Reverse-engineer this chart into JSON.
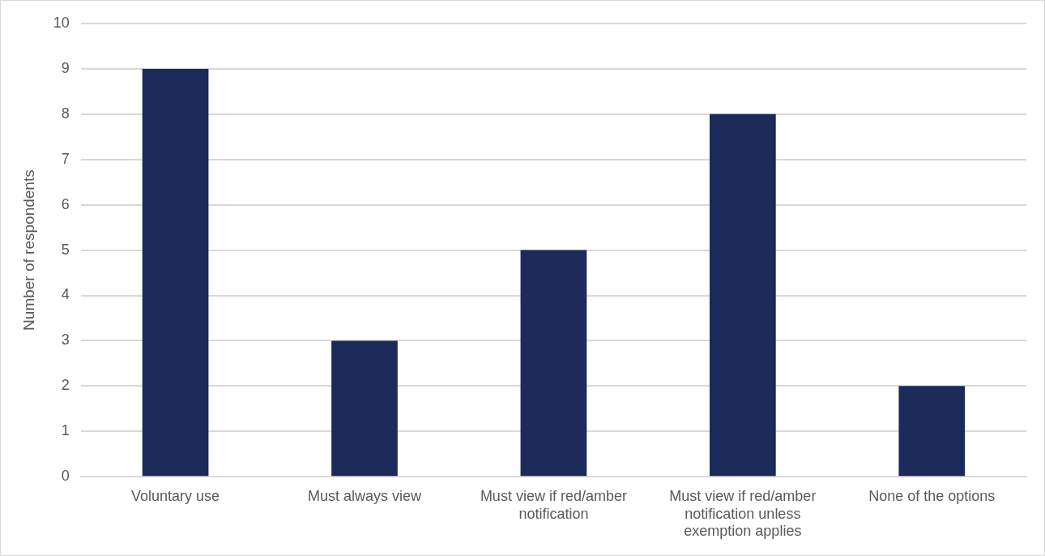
{
  "chart_data": {
    "type": "bar",
    "ylabel": "Number of respondents",
    "categories": [
      "Voluntary use",
      "Must always view",
      "Must view if red/amber notification",
      "Must view if red/amber notification unless exemption applies",
      "None of the options"
    ],
    "values": [
      9,
      3,
      5,
      8,
      2
    ],
    "color": "#1b2a58",
    "ylim": [
      0,
      10
    ],
    "yticks": [
      0,
      1,
      2,
      3,
      4,
      5,
      6,
      7,
      8,
      9,
      10
    ],
    "grid": "y",
    "legend": false
  }
}
